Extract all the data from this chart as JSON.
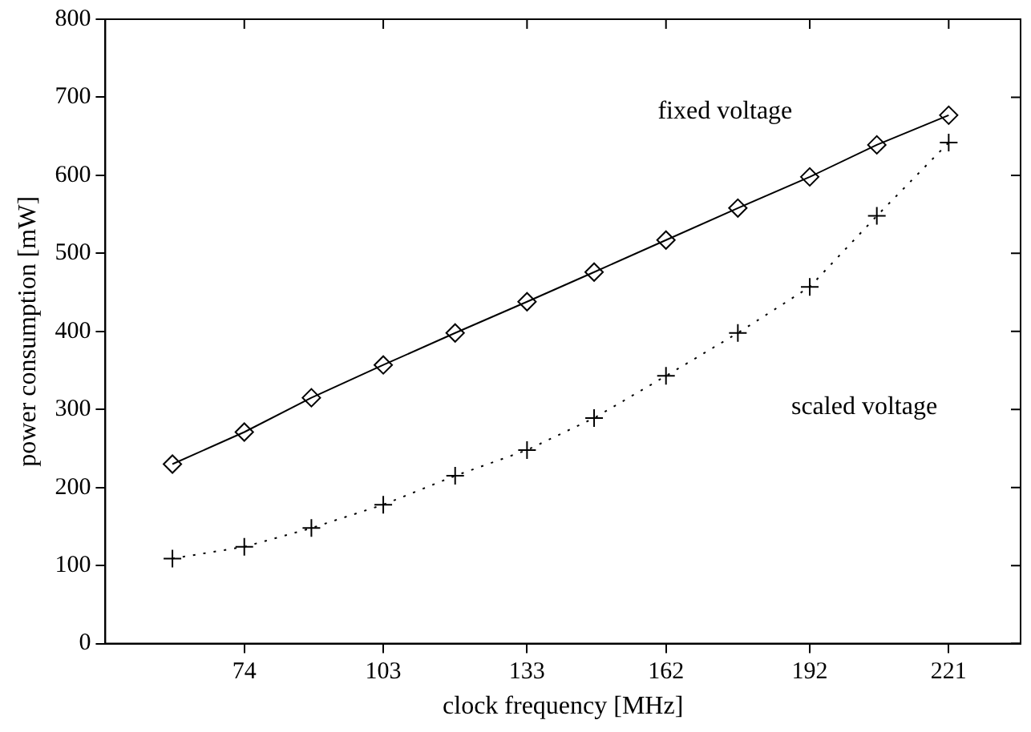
{
  "chart_data": {
    "type": "line",
    "xlabel": "clock frequency [MHz]",
    "ylabel": "power consumption [mW]",
    "x": [
      59,
      74,
      88,
      103,
      118,
      133,
      147,
      162,
      177,
      192,
      206,
      221
    ],
    "series": [
      {
        "name": "fixed voltage",
        "color": "#000000",
        "marker": "diamond",
        "line_style": "solid",
        "values": [
          230,
          271,
          315,
          357,
          398,
          438,
          476,
          517,
          558,
          598,
          639,
          677
        ]
      },
      {
        "name": "scaled voltage",
        "color": "#000000",
        "marker": "cross",
        "line_style": "dotted",
        "values": [
          109,
          124,
          148,
          178,
          215,
          248,
          289,
          343,
          398,
          457,
          548,
          642
        ]
      }
    ],
    "xlim": [
      45,
      236
    ],
    "xticks": [
      74,
      103,
      133,
      162,
      192,
      221
    ],
    "ylim": [
      0,
      800
    ],
    "yticks": [
      0,
      100,
      200,
      300,
      400,
      500,
      600,
      700,
      800
    ],
    "grid": false,
    "legend": false
  }
}
